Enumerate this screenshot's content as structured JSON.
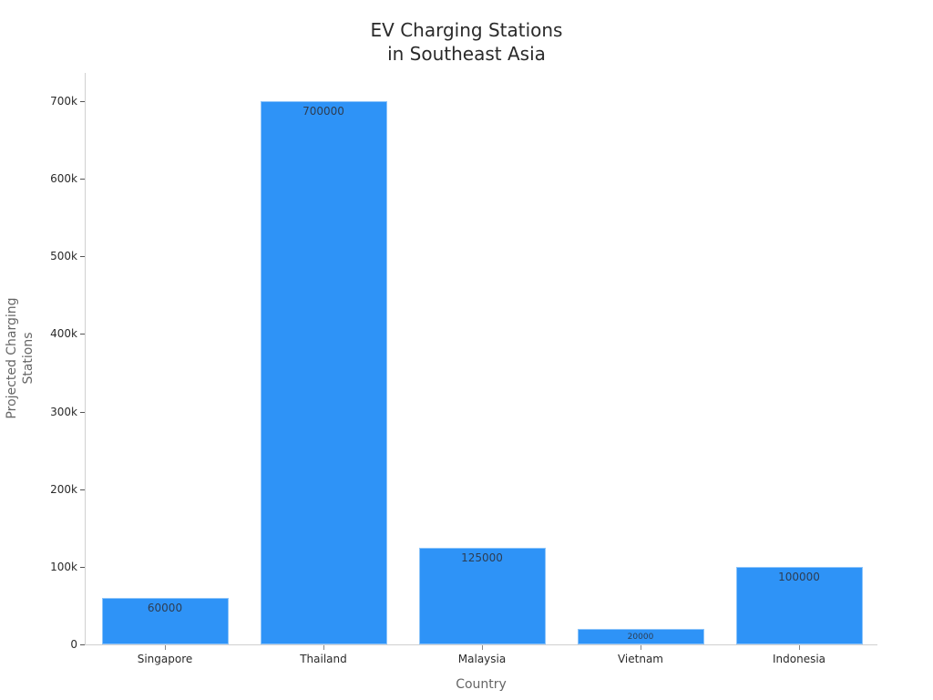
{
  "chart_data": {
    "type": "bar",
    "title": "EV Charging Stations in Southeast Asia",
    "title_lines": [
      "EV Charging Stations",
      "in Southeast Asia"
    ],
    "xlabel": "Country",
    "ylabel": "Projected Charging Stations",
    "ylabel_lines": [
      "Projected Charging",
      "Stations"
    ],
    "categories": [
      "Singapore",
      "Thailand",
      "Malaysia",
      "Vietnam",
      "Indonesia"
    ],
    "values": [
      60000,
      700000,
      125000,
      20000,
      100000
    ],
    "data_labels": [
      "60000",
      "700000",
      "125000",
      "20000",
      "100000"
    ],
    "yticks": [
      0,
      100000,
      200000,
      300000,
      400000,
      500000,
      600000,
      700000
    ],
    "ytick_labels": [
      "0",
      "100k",
      "200k",
      "300k",
      "400k",
      "500k",
      "600k",
      "700k"
    ],
    "ylim": [
      0,
      735000
    ],
    "grid": false,
    "legend": null,
    "bar_color": "#2e93f7"
  }
}
